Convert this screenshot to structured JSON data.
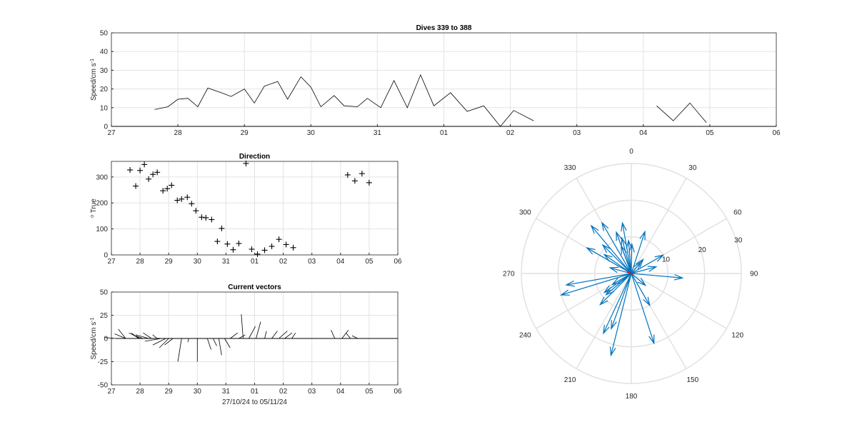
{
  "chart_data": [
    {
      "type": "line",
      "title": "Dives 339 to 388",
      "xlabel": "",
      "ylabel": "Speed/cm s",
      "ylabel_sup": "-1",
      "x_ticks": [
        "27",
        "28",
        "29",
        "30",
        "31",
        "01",
        "02",
        "03",
        "04",
        "05",
        "06"
      ],
      "y_ticks": [
        0,
        10,
        20,
        30,
        40,
        50
      ],
      "xlim": [
        0,
        10
      ],
      "ylim": [
        0,
        50
      ],
      "grid": true,
      "segments": [
        [
          [
            0.65,
            9
          ],
          [
            0.85,
            10.5
          ],
          [
            1.0,
            14.5
          ],
          [
            1.15,
            15
          ],
          [
            1.3,
            10.5
          ],
          [
            1.45,
            20.5
          ],
          [
            1.65,
            18
          ],
          [
            1.8,
            16
          ],
          [
            2.0,
            20
          ],
          [
            2.15,
            12.5
          ],
          [
            2.3,
            21.5
          ],
          [
            2.5,
            24
          ],
          [
            2.65,
            14.5
          ],
          [
            2.85,
            26.5
          ],
          [
            3.0,
            21
          ],
          [
            3.15,
            10.5
          ],
          [
            3.35,
            16.5
          ],
          [
            3.5,
            11
          ],
          [
            3.7,
            10.5
          ],
          [
            3.85,
            15
          ],
          [
            4.05,
            10
          ],
          [
            4.25,
            24.5
          ],
          [
            4.45,
            10
          ],
          [
            4.65,
            27.5
          ],
          [
            4.85,
            11
          ],
          [
            5.1,
            18
          ],
          [
            5.35,
            8
          ],
          [
            5.6,
            11
          ],
          [
            5.85,
            0
          ],
          [
            6.05,
            8.5
          ],
          [
            6.35,
            3
          ]
        ],
        [
          [
            8.2,
            11
          ],
          [
            8.45,
            3
          ],
          [
            8.7,
            12.5
          ],
          [
            8.95,
            2
          ]
        ]
      ]
    },
    {
      "type": "scatter",
      "title": "Direction",
      "xlabel": "",
      "ylabel": "True",
      "ylabel_prefix": "o",
      "x_ticks": [
        "27",
        "28",
        "29",
        "30",
        "31",
        "01",
        "02",
        "03",
        "04",
        "05",
        "06"
      ],
      "y_ticks": [
        0,
        100,
        200,
        300
      ],
      "xlim": [
        0,
        10
      ],
      "ylim": [
        0,
        360
      ],
      "grid": true,
      "marker": "+",
      "points": [
        [
          0.65,
          327
        ],
        [
          0.85,
          265
        ],
        [
          1.0,
          325
        ],
        [
          1.15,
          348
        ],
        [
          1.3,
          292
        ],
        [
          1.45,
          310
        ],
        [
          1.6,
          318
        ],
        [
          1.8,
          247
        ],
        [
          1.95,
          255
        ],
        [
          2.1,
          268
        ],
        [
          2.3,
          210
        ],
        [
          2.45,
          215
        ],
        [
          2.65,
          222
        ],
        [
          2.8,
          197
        ],
        [
          2.95,
          170
        ],
        [
          3.15,
          145
        ],
        [
          3.3,
          143
        ],
        [
          3.5,
          136
        ],
        [
          3.7,
          52
        ],
        [
          3.85,
          102
        ],
        [
          4.05,
          42
        ],
        [
          4.25,
          20
        ],
        [
          4.45,
          44
        ],
        [
          4.7,
          352
        ],
        [
          4.9,
          22
        ],
        [
          5.1,
          3
        ],
        [
          5.35,
          18
        ],
        [
          5.6,
          33
        ],
        [
          5.85,
          60
        ],
        [
          6.1,
          40
        ],
        [
          6.35,
          28
        ],
        [
          8.25,
          308
        ],
        [
          8.5,
          285
        ],
        [
          8.75,
          313
        ],
        [
          9.0,
          278
        ]
      ]
    },
    {
      "type": "line",
      "title": "Current vectors",
      "xlabel": "27/10/24 to 05/11/24",
      "ylabel": "Speed/cm s",
      "ylabel_sup": "-1",
      "x_ticks": [
        "27",
        "28",
        "29",
        "30",
        "31",
        "01",
        "02",
        "03",
        "04",
        "05",
        "06"
      ],
      "y_ticks": [
        50,
        25,
        0,
        -25,
        -50
      ],
      "xlim": [
        0,
        10
      ],
      "ylim": [
        -50,
        50
      ],
      "grid": true,
      "baseline": 0,
      "vectors": [
        [
          0.15,
          -12,
          1
        ],
        [
          0.5,
          -12,
          5
        ],
        [
          0.5,
          -8,
          10
        ],
        [
          0.7,
          -14,
          0
        ],
        [
          0.95,
          -8,
          6
        ],
        [
          1.1,
          -8,
          3
        ],
        [
          1.0,
          -12,
          6
        ],
        [
          1.3,
          -14,
          4
        ],
        [
          1.4,
          -9,
          6
        ],
        [
          1.5,
          -14,
          0
        ],
        [
          1.6,
          -5,
          4
        ],
        [
          1.75,
          -18,
          -3
        ],
        [
          1.9,
          -14,
          -7
        ],
        [
          2.0,
          -10,
          -10
        ],
        [
          2.15,
          -9,
          -7
        ],
        [
          2.45,
          -4,
          -25
        ],
        [
          2.7,
          -1,
          -4
        ],
        [
          3.0,
          0,
          -25
        ],
        [
          3.35,
          4,
          -12
        ],
        [
          3.55,
          4,
          -8
        ],
        [
          3.75,
          3,
          -18
        ],
        [
          3.95,
          6,
          -10
        ],
        [
          4.15,
          8,
          6
        ],
        [
          4.45,
          7,
          4
        ],
        [
          4.6,
          -2,
          26
        ],
        [
          4.8,
          7,
          13
        ],
        [
          5.05,
          5,
          18
        ],
        [
          5.35,
          2,
          8
        ],
        [
          5.6,
          6,
          8
        ],
        [
          5.85,
          9,
          8
        ],
        [
          6.05,
          8,
          6
        ],
        [
          6.3,
          4,
          6
        ],
        [
          7.8,
          -4,
          9
        ],
        [
          8.05,
          7,
          9
        ],
        [
          8.35,
          -5,
          6
        ],
        [
          8.6,
          -6,
          3
        ]
      ]
    },
    {
      "type": "polar",
      "title": "",
      "theta_ticks": [
        "0",
        "30",
        "60",
        "90",
        "120",
        "150",
        "180",
        "210",
        "240",
        "270",
        "300",
        "330"
      ],
      "r_ticks": [
        "10",
        "20",
        "30"
      ],
      "rlim": [
        0,
        30
      ],
      "theta_zero": "top",
      "theta_direction": "clockwise",
      "color": "#0072BD",
      "origin_marker_color": "#FF0000",
      "vectors": [
        [
          8,
          1
        ],
        [
          9,
          355
        ],
        [
          12,
          18
        ],
        [
          4,
          40
        ],
        [
          10,
          60
        ],
        [
          7,
          75
        ],
        [
          14,
          95
        ],
        [
          10,
          150
        ],
        [
          5,
          130
        ],
        [
          20,
          162
        ],
        [
          23,
          194
        ],
        [
          16,
          200
        ],
        [
          18,
          205
        ],
        [
          12,
          225
        ],
        [
          9,
          235
        ],
        [
          9,
          230
        ],
        [
          6,
          240
        ],
        [
          20,
          253
        ],
        [
          18,
          260
        ],
        [
          6,
          285
        ],
        [
          14,
          300
        ],
        [
          17,
          320
        ],
        [
          8,
          340
        ],
        [
          12,
          340
        ],
        [
          14,
          350
        ],
        [
          10,
          345
        ],
        [
          16,
          330
        ],
        [
          9,
          305
        ],
        [
          11,
          315
        ],
        [
          5,
          40
        ]
      ]
    }
  ]
}
